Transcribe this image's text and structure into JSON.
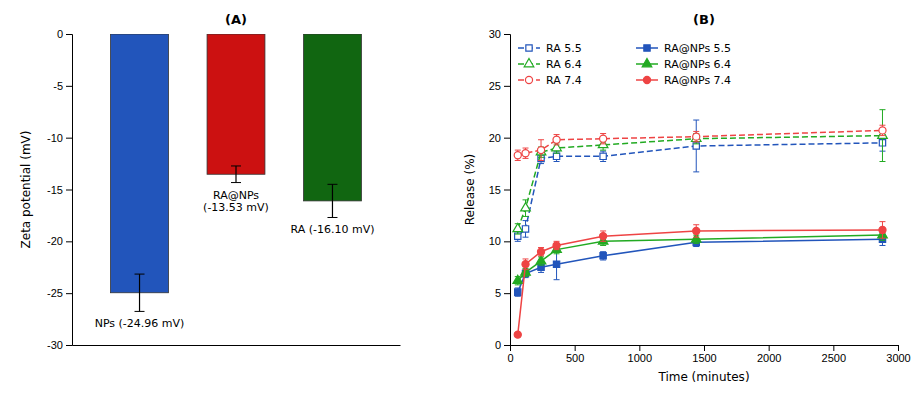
{
  "chart_data": [
    {
      "type": "bar",
      "title": "(A)",
      "categories": [
        null,
        null,
        null
      ],
      "values": [
        -24.96,
        -13.53,
        -16.1
      ],
      "errors": [
        1.8,
        0.8,
        1.6
      ],
      "colors": [
        "#2255BB",
        "#CC1111",
        "#116611"
      ],
      "annotations": [
        "NPs (-24.96 mV)",
        "RA@NPs\n(-13.53 mV)",
        "RA (-16.10 mV)"
      ],
      "ylabel": "Zeta potential (mV)",
      "ylim": [
        -30,
        0
      ],
      "yticks": [
        0,
        -5,
        -10,
        -15,
        -20,
        -25,
        -30
      ],
      "tick_labels": "y",
      "grid": false
    },
    {
      "type": "line",
      "title": "(B)",
      "xlabel": "Time (minutes)",
      "ylabel": "Release (%)",
      "x": [
        60,
        120,
        240,
        360,
        720,
        1440,
        2880
      ],
      "xlim": [
        0,
        3000
      ],
      "xticks": [
        0,
        500,
        1000,
        1500,
        2000,
        2500,
        3000
      ],
      "ylim": [
        0,
        30
      ],
      "yticks": [
        0,
        5,
        10,
        15,
        20,
        25,
        30
      ],
      "grid": false,
      "legend": "upper left",
      "series": [
        {
          "name": "RA 5.5",
          "color": "#2255BB",
          "marker": "square-open",
          "line_style": "dashed",
          "values": [
            10.5,
            11.2,
            18.0,
            18.2,
            18.2,
            19.2,
            19.5
          ],
          "errors": [
            0.5,
            0.8,
            0.5,
            0.5,
            0.5,
            2.5,
            0.8
          ]
        },
        {
          "name": "RA 6.4",
          "color": "#22AA22",
          "marker": "triangle-open",
          "line_style": "dashed",
          "values": [
            11.2,
            13.2,
            18.6,
            19.0,
            19.3,
            19.9,
            20.2
          ],
          "errors": [
            0.5,
            0.8,
            0.5,
            0.5,
            0.5,
            0.5,
            2.5
          ]
        },
        {
          "name": "RA 7.4",
          "color": "#EE4444",
          "marker": "circle-open",
          "line_style": "dashed",
          "values": [
            18.3,
            18.5,
            18.8,
            19.8,
            19.9,
            20.1,
            20.7
          ],
          "errors": [
            0.5,
            0.5,
            1.0,
            0.5,
            0.5,
            0.5,
            0.5
          ]
        },
        {
          "name": "RA@NPs 5.5",
          "color": "#2255BB",
          "marker": "square",
          "line_style": "solid",
          "values": [
            5.1,
            6.9,
            7.5,
            7.8,
            8.6,
            9.9,
            10.2
          ],
          "errors": [
            0.4,
            0.4,
            0.5,
            1.5,
            0.4,
            0.4,
            0.6
          ]
        },
        {
          "name": "RA@NPs 6.4",
          "color": "#22AA22",
          "marker": "triangle",
          "line_style": "solid",
          "values": [
            6.2,
            7.0,
            8.1,
            9.2,
            10.0,
            10.2,
            10.6
          ],
          "errors": [
            0.4,
            0.4,
            0.4,
            0.4,
            0.4,
            0.4,
            0.5
          ]
        },
        {
          "name": "RA@NPs 7.4",
          "color": "#EE4444",
          "marker": "circle",
          "line_style": "solid",
          "values": [
            1.0,
            7.8,
            9.0,
            9.6,
            10.5,
            11.0,
            11.1
          ],
          "errors": [
            0.2,
            0.5,
            0.4,
            0.4,
            0.5,
            0.6,
            0.8
          ]
        }
      ]
    }
  ]
}
